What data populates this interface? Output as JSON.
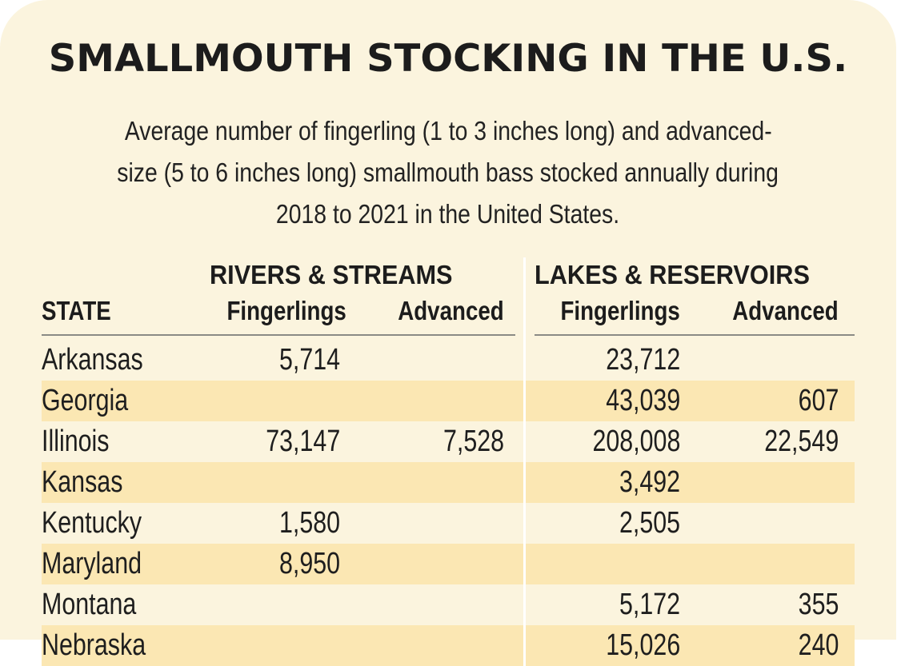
{
  "title": "SMALLMOUTH STOCKING IN THE U.S.",
  "subtitle": {
    "line1": "Average number of fingerling (1 to 3 inches long) and advanced-",
    "line2": "size (5 to 6 inches long) smallmouth bass stocked annually during",
    "line3": "2018 to 2021 in the United States."
  },
  "table": {
    "group_headers": {
      "rivers": "RIVERS & STREAMS",
      "lakes": "LAKES & RESERVOIRS"
    },
    "columns": {
      "state": "STATE",
      "rivers_fingerlings": "Fingerlings",
      "rivers_advanced": "Advanced",
      "lakes_fingerlings": "Fingerlings",
      "lakes_advanced": "Advanced"
    },
    "rows": [
      {
        "state": "Arkansas",
        "rf": "5,714",
        "ra": "",
        "lf": "23,712",
        "la": ""
      },
      {
        "state": "Georgia",
        "rf": "",
        "ra": "",
        "lf": "43,039",
        "la": "607"
      },
      {
        "state": "Illinois",
        "rf": "73,147",
        "ra": "7,528",
        "lf": "208,008",
        "la": "22,549"
      },
      {
        "state": "Kansas",
        "rf": "",
        "ra": "",
        "lf": "3,492",
        "la": ""
      },
      {
        "state": "Kentucky",
        "rf": "1,580",
        "ra": "",
        "lf": "2,505",
        "la": ""
      },
      {
        "state": "Maryland",
        "rf": "8,950",
        "ra": "",
        "lf": "",
        "la": ""
      },
      {
        "state": "Montana",
        "rf": "",
        "ra": "",
        "lf": "5,172",
        "la": "355"
      },
      {
        "state": "Nebraska",
        "rf": "",
        "ra": "",
        "lf": "15,026",
        "la": "240"
      }
    ]
  },
  "colors": {
    "background": "#fbf4de",
    "band": "#fbe7b3",
    "text": "#1c1c1c"
  }
}
